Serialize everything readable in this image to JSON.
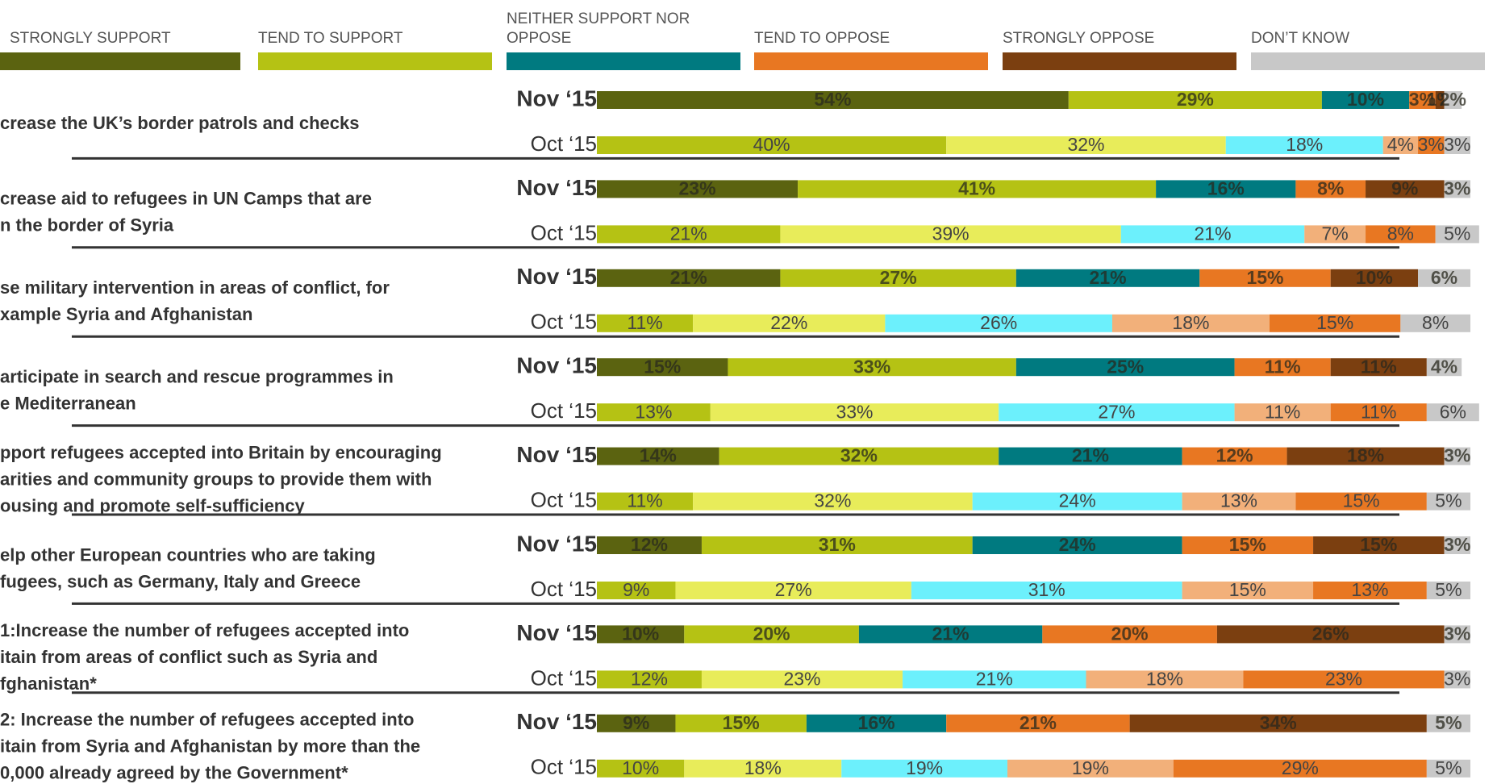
{
  "chart_data": {
    "type": "bar",
    "orientation": "horizontal",
    "stacked": true,
    "xlim": [
      0,
      100
    ],
    "legend": [
      "STRONGLY SUPPORT",
      "TEND TO SUPPORT",
      "NEITHER SUPPORT NOR OPPOSE",
      "TEND TO OPPOSE",
      "STRONGLY OPPOSE",
      "DON’T KNOW"
    ],
    "legend_colors": [
      "#5b6310",
      "#b5c214",
      "#007a80",
      "#e87722",
      "#7b3f10",
      "#c8c8c8"
    ],
    "categories": [
      [
        "crease the UK’s border patrols and checks"
      ],
      [
        "crease aid to refugees in UN Camps that are",
        "n the border of Syria"
      ],
      [
        "se military intervention in areas of conflict, for",
        "xample Syria and Afghanistan"
      ],
      [
        "articipate in search and rescue programmes in",
        "e Mediterranean"
      ],
      [
        "pport refugees accepted into Britain by encouraging",
        "arities and community groups to provide them with",
        "ousing and promote self-sufficiency"
      ],
      [
        "elp other European countries who are taking",
        "fugees, such as Germany, Italy and Greece"
      ],
      [
        "1:Increase the number of refugees accepted into",
        "itain from areas of conflict such as Syria and",
        "fghanistan*"
      ],
      [
        "2: Increase the number of refugees accepted into",
        "itain from Syria and Afghanistan by more than the",
        "0,000 already agreed by the Government*"
      ]
    ],
    "groups": [
      {
        "name": "Nov ‘15",
        "colors": [
          "#5b6310",
          "#b5c214",
          "#007a80",
          "#e87722",
          "#7b3f10",
          "#c8c8c8"
        ],
        "values": [
          [
            54,
            29,
            10,
            3,
            1,
            2
          ],
          [
            23,
            41,
            16,
            8,
            9,
            3
          ],
          [
            21,
            27,
            21,
            15,
            10,
            6
          ],
          [
            15,
            33,
            25,
            11,
            11,
            4
          ],
          [
            14,
            32,
            21,
            12,
            18,
            3
          ],
          [
            12,
            31,
            24,
            15,
            15,
            3
          ],
          [
            10,
            20,
            21,
            20,
            26,
            3
          ],
          [
            9,
            15,
            16,
            21,
            34,
            5
          ]
        ],
        "value_labels": [
          [
            "54%",
            "29%",
            "10%",
            "3%",
            "1%",
            "2%"
          ],
          [
            "23%",
            "41%",
            "16%",
            "8%",
            "9%",
            "3%"
          ],
          [
            "21%",
            "27%",
            "21%",
            "15%",
            "10%",
            "6%"
          ],
          [
            "15%",
            "33%",
            "25%",
            "11%",
            "11%",
            "4%"
          ],
          [
            "14%",
            "32%",
            "21%",
            "12%",
            "18%",
            "3%"
          ],
          [
            "12%",
            "31%",
            "24%",
            "15%",
            "15%",
            "3%"
          ],
          [
            "10%",
            "20%",
            "21%",
            "20%",
            "26%",
            "3%"
          ],
          [
            "9%",
            "15%",
            "16%",
            "21%",
            "34%",
            "5%"
          ]
        ]
      },
      {
        "name": "Oct ‘15",
        "colors": [
          "#b5c214",
          "#e8ec5a",
          "#6cf0fc",
          "#f2b07a",
          "#e87722",
          "#c8c8c8"
        ],
        "values": [
          [
            40,
            32,
            18,
            4,
            3,
            3
          ],
          [
            21,
            39,
            21,
            7,
            8,
            5
          ],
          [
            11,
            22,
            26,
            18,
            15,
            8
          ],
          [
            13,
            33,
            27,
            11,
            11,
            6
          ],
          [
            11,
            32,
            24,
            13,
            15,
            5
          ],
          [
            9,
            27,
            31,
            15,
            13,
            5
          ],
          [
            12,
            23,
            21,
            18,
            23,
            3
          ],
          [
            10,
            18,
            19,
            19,
            29,
            5
          ]
        ],
        "value_labels": [
          [
            "40%",
            "32%",
            "18%",
            "4%",
            "3%",
            "3%"
          ],
          [
            "21%",
            "39%",
            "21%",
            "7%",
            "8%",
            "5%"
          ],
          [
            "11%",
            "22%",
            "26%",
            "18%",
            "15%",
            "8%"
          ],
          [
            "13%",
            "33%",
            "27%",
            "11%",
            "11%",
            "6%"
          ],
          [
            "11%",
            "32%",
            "24%",
            "13%",
            "15%",
            "5%"
          ],
          [
            "9%",
            "27%",
            "31%",
            "15%",
            "13%",
            "5%"
          ],
          [
            "12%",
            "23%",
            "21%",
            "18%",
            "23%",
            "3%"
          ],
          [
            "10%",
            "18%",
            "19%",
            "19%",
            "29%",
            "5%"
          ]
        ]
      }
    ]
  }
}
